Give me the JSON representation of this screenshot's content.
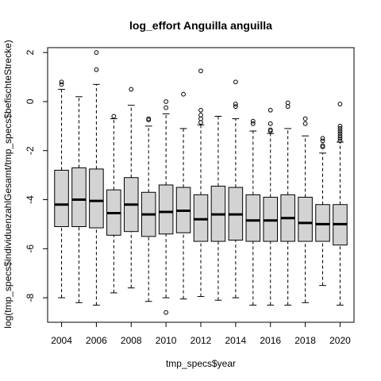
{
  "chart_data": {
    "type": "boxplot",
    "title": "log_effort Anguilla anguilla",
    "xlabel": "tmp_specs$year",
    "ylabel": "log(tmp_specs$individuenzahlGesamt/tmp_specs$befischteStrecke)",
    "ylim": [
      -9,
      2.2
    ],
    "yticks": [
      -8,
      -6,
      -4,
      -2,
      0,
      2
    ],
    "xtick_labels": [
      "2004",
      "2006",
      "2008",
      "2010",
      "2012",
      "2014",
      "2016",
      "2018",
      "2020"
    ],
    "box_fill": "#d3d3d3",
    "boxes": [
      {
        "year": 2004,
        "whisker_low": -8.0,
        "q1": -5.1,
        "median": -4.2,
        "q3": -2.8,
        "whisker_high": 0.5,
        "outliers": [
          0.7,
          0.8
        ]
      },
      {
        "year": 2005,
        "whisker_low": -8.2,
        "q1": -5.1,
        "median": -4.0,
        "q3": -2.7,
        "whisker_high": 0.2,
        "outliers": []
      },
      {
        "year": 2006,
        "whisker_low": -8.3,
        "q1": -5.15,
        "median": -4.05,
        "q3": -2.75,
        "whisker_high": 0.7,
        "outliers": [
          1.3,
          2.0
        ]
      },
      {
        "year": 2007,
        "whisker_low": -7.8,
        "q1": -5.45,
        "median": -4.55,
        "q3": -3.6,
        "whisker_high": -0.7,
        "outliers": [
          -0.6
        ]
      },
      {
        "year": 2008,
        "whisker_low": -7.6,
        "q1": -5.3,
        "median": -4.2,
        "q3": -3.1,
        "whisker_high": -0.15,
        "outliers": [
          0.5
        ]
      },
      {
        "year": 2009,
        "whisker_low": -8.15,
        "q1": -5.5,
        "median": -4.6,
        "q3": -3.7,
        "whisker_high": -1.0,
        "outliers": [
          -0.75,
          -0.7
        ]
      },
      {
        "year": 2010,
        "whisker_low": -8.0,
        "q1": -5.4,
        "median": -4.5,
        "q3": -3.4,
        "whisker_high": -0.5,
        "outliers": [
          -0.25,
          0.0,
          -8.6
        ]
      },
      {
        "year": 2011,
        "whisker_low": -8.05,
        "q1": -5.35,
        "median": -4.45,
        "q3": -3.5,
        "whisker_high": -1.1,
        "outliers": [
          0.3
        ]
      },
      {
        "year": 2012,
        "whisker_low": -7.95,
        "q1": -5.7,
        "median": -4.8,
        "q3": -3.8,
        "whisker_high": -0.95,
        "outliers": [
          -0.85,
          -0.7,
          -0.55,
          -0.35,
          1.25
        ]
      },
      {
        "year": 2013,
        "whisker_low": -8.1,
        "q1": -5.7,
        "median": -4.6,
        "q3": -3.45,
        "whisker_high": -0.6,
        "outliers": []
      },
      {
        "year": 2014,
        "whisker_low": -8.0,
        "q1": -5.65,
        "median": -4.6,
        "q3": -3.5,
        "whisker_high": -0.7,
        "outliers": [
          -0.2,
          -0.1,
          0.8
        ]
      },
      {
        "year": 2015,
        "whisker_low": -8.3,
        "q1": -5.7,
        "median": -4.85,
        "q3": -3.8,
        "whisker_high": -1.2,
        "outliers": [
          -0.9,
          -0.8
        ]
      },
      {
        "year": 2016,
        "whisker_low": -8.3,
        "q1": -5.7,
        "median": -4.85,
        "q3": -3.9,
        "whisker_high": -1.3,
        "outliers": [
          -1.2,
          -1.15,
          -0.9,
          -0.35
        ]
      },
      {
        "year": 2017,
        "whisker_low": -8.3,
        "q1": -5.7,
        "median": -4.75,
        "q3": -3.8,
        "whisker_high": -1.1,
        "outliers": [
          -0.2,
          -0.05
        ]
      },
      {
        "year": 2018,
        "whisker_low": -8.2,
        "q1": -5.7,
        "median": -4.95,
        "q3": -3.9,
        "whisker_high": -1.4,
        "outliers": [
          -0.9,
          -0.7
        ]
      },
      {
        "year": 2019,
        "whisker_low": -7.5,
        "q1": -5.7,
        "median": -5.0,
        "q3": -4.2,
        "whisker_high": -2.1,
        "outliers": [
          -1.85,
          -1.8,
          -1.6,
          -1.5
        ]
      },
      {
        "year": 2020,
        "whisker_low": -8.3,
        "q1": -5.85,
        "median": -5.0,
        "q3": -4.2,
        "whisker_high": -1.65,
        "outliers": [
          -1.6,
          -1.5,
          -1.4,
          -1.3,
          -1.2,
          -1.1,
          -1.0,
          -0.1
        ]
      }
    ]
  }
}
